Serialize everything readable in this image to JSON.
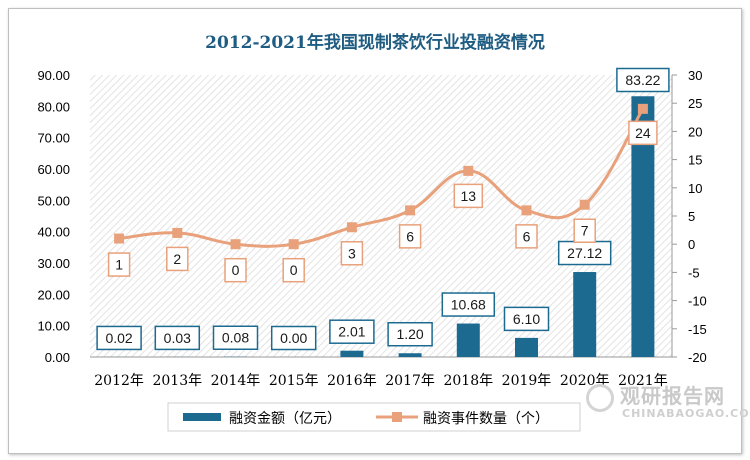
{
  "chart_data": {
    "type": "bar+line",
    "title": "2012-2021年我国现制茶饮行业投融资情况",
    "categories": [
      "2012年",
      "2013年",
      "2014年",
      "2015年",
      "2016年",
      "2017年",
      "2018年",
      "2019年",
      "2020年",
      "2021年"
    ],
    "series": [
      {
        "name": "融资金额（亿元）",
        "type": "bar",
        "axis": "left",
        "color": "#1d6a91",
        "values": [
          0.02,
          0.03,
          0.08,
          0.0,
          2.01,
          1.2,
          10.68,
          6.1,
          27.12,
          83.22
        ],
        "labels": [
          "0.02",
          "0.03",
          "0.08",
          "0.00",
          "2.01",
          "1.20",
          "10.68",
          "6.10",
          "27.12",
          "83.22"
        ]
      },
      {
        "name": "融资事件数量（个）",
        "type": "line",
        "axis": "right",
        "color": "#e8a17b",
        "values": [
          1,
          2,
          0,
          0,
          3,
          6,
          13,
          6,
          7,
          24
        ],
        "labels": [
          "1",
          "2",
          "0",
          "0",
          "3",
          "6",
          "13",
          "6",
          "7",
          "24"
        ]
      }
    ],
    "y_left": {
      "min": 0,
      "max": 90,
      "step": 10,
      "ticks": [
        "0.00",
        "10.00",
        "20.00",
        "30.00",
        "40.00",
        "50.00",
        "60.00",
        "70.00",
        "80.00",
        "90.00"
      ]
    },
    "y_right": {
      "min": -20,
      "max": 30,
      "step": 5,
      "ticks": [
        "-20",
        "-15",
        "-10",
        "-5",
        "0",
        "5",
        "10",
        "15",
        "20",
        "25",
        "30"
      ]
    },
    "grid": "diagonal-hatch background",
    "legend_position": "bottom"
  },
  "watermark": {
    "main": "观研报告网",
    "sub": "CHINABAOGAO.COM"
  }
}
